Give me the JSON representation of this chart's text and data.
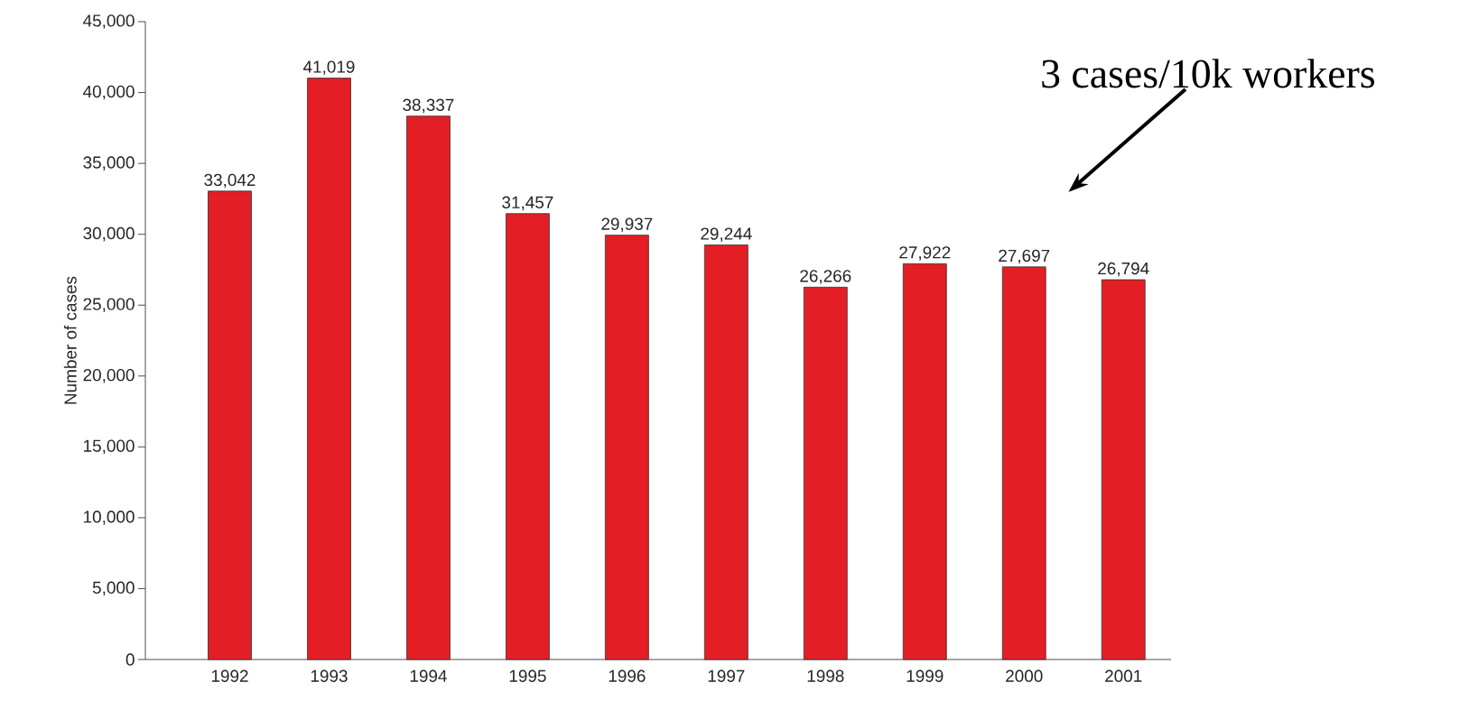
{
  "chart_data": {
    "type": "bar",
    "ylabel": "Number of cases",
    "categories": [
      "1992",
      "1993",
      "1994",
      "1995",
      "1996",
      "1997",
      "1998",
      "1999",
      "2000",
      "2001"
    ],
    "values": [
      33042,
      41019,
      38337,
      31457,
      29937,
      29244,
      26266,
      27922,
      27697,
      26794
    ],
    "value_labels": [
      "33,042",
      "41,019",
      "38,337",
      "31,457",
      "29,937",
      "29,244",
      "26,266",
      "27,922",
      "27,697",
      "26,794"
    ],
    "color": "#e31e24",
    "ylim": [
      0,
      45000
    ],
    "yticks": [
      {
        "value": 0,
        "label": "0"
      },
      {
        "value": 5000,
        "label": "5,000"
      },
      {
        "value": 10000,
        "label": "10,000"
      },
      {
        "value": 15000,
        "label": "15,000"
      },
      {
        "value": 20000,
        "label": "20,000"
      },
      {
        "value": 25000,
        "label": "25,000"
      },
      {
        "value": 30000,
        "label": "30,000"
      },
      {
        "value": 35000,
        "label": "35,000"
      },
      {
        "value": 40000,
        "label": "40,000"
      },
      {
        "value": 45000,
        "label": "45,000"
      }
    ],
    "grid": false,
    "annotations": [
      "3 cases/10k workers"
    ]
  }
}
